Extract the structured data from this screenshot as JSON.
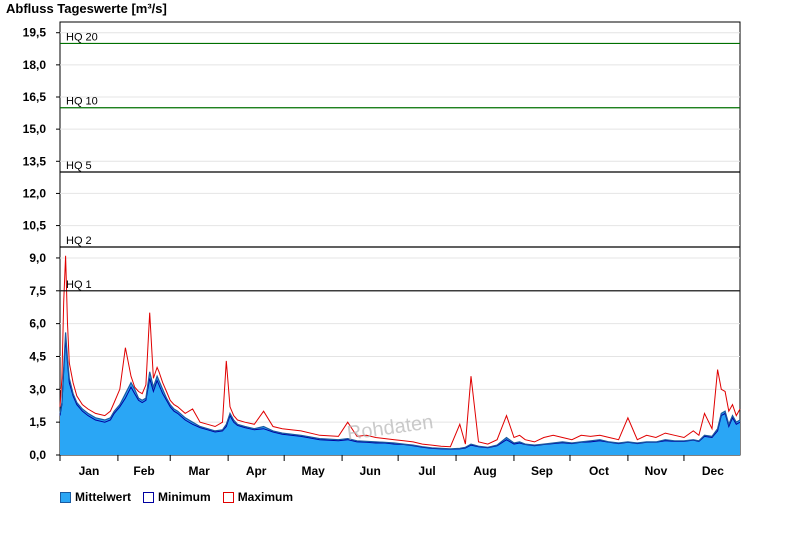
{
  "title": "Abfluss Tageswerte [m³/s]",
  "watermark": "Rohdaten",
  "colors": {
    "mean_fill": "#2aa6f5",
    "mean_line": "#1a5aa0",
    "min_line": "#0000a0",
    "max_line": "#e00000",
    "hq_black": "#000000",
    "hq_green": "#007000",
    "grid": "#e4e4e4"
  },
  "chart_data": {
    "type": "area",
    "xlabel": "",
    "ylabel": "Abfluss Tageswerte [m³/s]",
    "x_categories": [
      "Jan",
      "Feb",
      "Mar",
      "Apr",
      "May",
      "Jun",
      "Jul",
      "Aug",
      "Sep",
      "Oct",
      "Nov",
      "Dec"
    ],
    "day_range": [
      1,
      365
    ],
    "y_segments": [
      {
        "range": [
          0,
          9.5
        ],
        "ticks": [
          "0,0",
          "1,5",
          "3,0",
          "4,5",
          "6,0",
          "7,5",
          "9,0"
        ],
        "tick_values": [
          0,
          1.5,
          3,
          4.5,
          6,
          7.5,
          9
        ]
      },
      {
        "range": [
          9.5,
          20
        ],
        "ticks": [
          "10,5",
          "12,0",
          "13,5",
          "15,0",
          "16,5",
          "18,0",
          "19,5"
        ],
        "tick_values": [
          10.5,
          12,
          13.5,
          15,
          16.5,
          18,
          19.5
        ]
      }
    ],
    "thresholds": [
      {
        "label": "HQ 1",
        "value": 7.5,
        "color": "#000000"
      },
      {
        "label": "HQ 2",
        "value": 9.5,
        "color": "#000000"
      },
      {
        "label": "HQ 5",
        "value": 13,
        "color": "#000000"
      },
      {
        "label": "HQ 10",
        "value": 16,
        "color": "#007000"
      },
      {
        "label": "HQ 20",
        "value": 19,
        "color": "#007000"
      }
    ],
    "series": [
      {
        "name": "Mittelwert",
        "style": "area",
        "x": [
          1,
          2,
          3,
          4,
          5,
          6,
          8,
          10,
          13,
          16,
          20,
          25,
          28,
          30,
          33,
          36,
          39,
          41,
          43,
          45,
          47,
          49,
          51,
          53,
          54,
          56,
          58,
          60,
          62,
          64,
          68,
          72,
          76,
          80,
          84,
          88,
          90,
          92,
          94,
          96,
          100,
          105,
          110,
          115,
          120,
          130,
          140,
          150,
          155,
          160,
          165,
          170,
          175,
          180,
          185,
          190,
          195,
          200,
          205,
          210,
          215,
          218,
          221,
          225,
          230,
          235,
          240,
          244,
          247,
          250,
          255,
          260,
          265,
          270,
          275,
          280,
          285,
          290,
          295,
          300,
          305,
          310,
          315,
          320,
          325,
          330,
          335,
          340,
          343,
          346,
          350,
          353,
          355,
          357,
          359,
          361,
          363,
          365
        ],
        "y": [
          1.9,
          2.4,
          4.0,
          5.6,
          4.4,
          3.5,
          2.8,
          2.4,
          2.1,
          1.9,
          1.7,
          1.6,
          1.7,
          2.0,
          2.3,
          2.8,
          3.3,
          3.0,
          2.6,
          2.5,
          2.6,
          3.8,
          3.1,
          3.6,
          3.4,
          3.0,
          2.6,
          2.3,
          2.1,
          2.0,
          1.7,
          1.5,
          1.3,
          1.2,
          1.1,
          1.15,
          1.4,
          1.9,
          1.6,
          1.4,
          1.3,
          1.2,
          1.3,
          1.1,
          1.0,
          0.9,
          0.75,
          0.7,
          0.75,
          0.65,
          0.62,
          0.6,
          0.58,
          0.55,
          0.5,
          0.45,
          0.38,
          0.33,
          0.3,
          0.28,
          0.3,
          0.35,
          0.5,
          0.4,
          0.35,
          0.45,
          0.8,
          0.55,
          0.6,
          0.5,
          0.45,
          0.5,
          0.55,
          0.6,
          0.55,
          0.6,
          0.65,
          0.7,
          0.6,
          0.55,
          0.6,
          0.55,
          0.6,
          0.6,
          0.7,
          0.65,
          0.65,
          0.7,
          0.65,
          0.9,
          0.85,
          1.2,
          1.9,
          2.0,
          1.4,
          1.8,
          1.5,
          1.6
        ]
      },
      {
        "name": "Minimum",
        "style": "line",
        "x": [
          1,
          2,
          3,
          4,
          5,
          6,
          8,
          10,
          13,
          16,
          20,
          25,
          28,
          30,
          33,
          36,
          39,
          41,
          43,
          45,
          47,
          49,
          51,
          53,
          54,
          56,
          58,
          60,
          62,
          64,
          68,
          72,
          76,
          80,
          84,
          88,
          90,
          92,
          94,
          96,
          100,
          105,
          110,
          115,
          120,
          130,
          140,
          150,
          155,
          160,
          165,
          170,
          175,
          180,
          185,
          190,
          195,
          200,
          205,
          210,
          215,
          218,
          221,
          225,
          230,
          235,
          240,
          244,
          247,
          250,
          255,
          260,
          265,
          270,
          275,
          280,
          285,
          290,
          295,
          300,
          305,
          310,
          315,
          320,
          325,
          330,
          335,
          340,
          343,
          346,
          350,
          353,
          355,
          357,
          359,
          361,
          363,
          365
        ],
        "y": [
          1.8,
          2.3,
          3.8,
          5.3,
          4.2,
          3.3,
          2.7,
          2.3,
          2.0,
          1.8,
          1.6,
          1.5,
          1.6,
          1.9,
          2.2,
          2.6,
          3.1,
          2.8,
          2.5,
          2.4,
          2.5,
          3.5,
          2.9,
          3.4,
          3.2,
          2.8,
          2.5,
          2.2,
          2.0,
          1.9,
          1.6,
          1.4,
          1.25,
          1.15,
          1.05,
          1.1,
          1.3,
          1.8,
          1.5,
          1.35,
          1.25,
          1.15,
          1.2,
          1.05,
          0.95,
          0.85,
          0.7,
          0.65,
          0.7,
          0.6,
          0.58,
          0.55,
          0.55,
          0.5,
          0.48,
          0.42,
          0.35,
          0.3,
          0.28,
          0.26,
          0.28,
          0.32,
          0.45,
          0.38,
          0.33,
          0.42,
          0.7,
          0.5,
          0.55,
          0.48,
          0.42,
          0.48,
          0.52,
          0.56,
          0.52,
          0.58,
          0.6,
          0.65,
          0.58,
          0.52,
          0.58,
          0.52,
          0.58,
          0.58,
          0.65,
          0.62,
          0.62,
          0.68,
          0.62,
          0.85,
          0.8,
          1.1,
          1.8,
          1.9,
          1.3,
          1.7,
          1.4,
          1.5
        ]
      },
      {
        "name": "Maximum",
        "style": "line",
        "x": [
          1,
          2,
          3,
          4,
          5,
          6,
          8,
          10,
          13,
          16,
          20,
          25,
          28,
          30,
          33,
          36,
          39,
          41,
          43,
          45,
          47,
          49,
          51,
          53,
          54,
          56,
          58,
          60,
          62,
          64,
          68,
          72,
          76,
          80,
          84,
          88,
          90,
          92,
          94,
          96,
          100,
          105,
          110,
          115,
          120,
          130,
          140,
          150,
          155,
          160,
          165,
          170,
          175,
          180,
          185,
          190,
          195,
          200,
          205,
          210,
          215,
          218,
          221,
          225,
          230,
          235,
          240,
          244,
          247,
          250,
          255,
          260,
          265,
          270,
          275,
          280,
          285,
          290,
          295,
          300,
          305,
          310,
          315,
          320,
          325,
          330,
          335,
          340,
          343,
          346,
          350,
          353,
          355,
          357,
          359,
          361,
          363,
          365
        ],
        "y": [
          2.2,
          3.5,
          7.0,
          9.1,
          6.0,
          4.2,
          3.3,
          2.7,
          2.3,
          2.1,
          1.9,
          1.8,
          2.0,
          2.4,
          3.0,
          4.9,
          3.6,
          3.1,
          2.9,
          2.8,
          3.2,
          6.5,
          3.5,
          4.0,
          3.8,
          3.3,
          2.9,
          2.5,
          2.3,
          2.2,
          1.9,
          2.1,
          1.5,
          1.4,
          1.3,
          1.5,
          4.3,
          2.2,
          1.8,
          1.6,
          1.5,
          1.4,
          2.0,
          1.3,
          1.2,
          1.1,
          0.9,
          0.85,
          1.5,
          0.85,
          0.9,
          0.8,
          0.75,
          0.7,
          0.65,
          0.6,
          0.5,
          0.45,
          0.4,
          0.38,
          1.4,
          0.5,
          3.6,
          0.6,
          0.5,
          0.7,
          1.8,
          0.8,
          0.9,
          0.7,
          0.6,
          0.8,
          0.9,
          0.8,
          0.7,
          0.9,
          0.85,
          0.9,
          0.8,
          0.7,
          1.7,
          0.7,
          0.9,
          0.8,
          1.0,
          0.9,
          0.8,
          1.1,
          0.9,
          1.9,
          1.2,
          3.9,
          3.0,
          2.9,
          2.0,
          2.3,
          1.8,
          2.1
        ]
      }
    ],
    "legend": [
      {
        "label": "Mittelwert",
        "swatch": "sw-mean"
      },
      {
        "label": "Minimum",
        "swatch": "sw-min"
      },
      {
        "label": "Maximum",
        "swatch": "sw-max"
      }
    ],
    "legend_position": "bottom-left",
    "grid": true
  }
}
